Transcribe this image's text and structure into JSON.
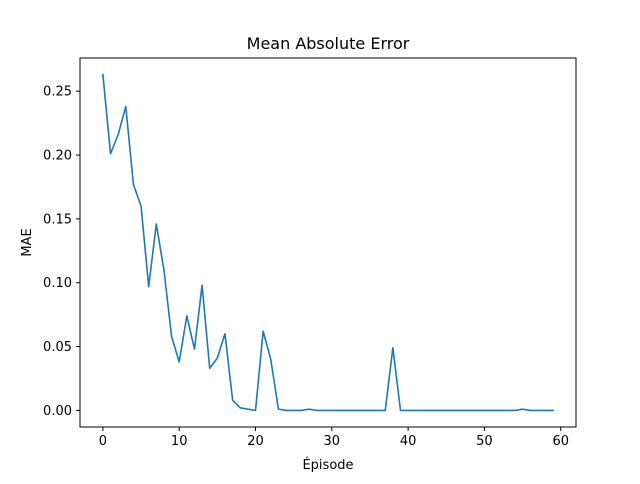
{
  "chart_data": {
    "type": "line",
    "title": "Mean Absolute Error",
    "xlabel": "Épisode",
    "ylabel": "MAE",
    "xlim": [
      -3,
      62
    ],
    "ylim": [
      -0.013,
      0.276
    ],
    "xticks": [
      0,
      10,
      20,
      30,
      40,
      50,
      60
    ],
    "xtick_labels": [
      "0",
      "10",
      "20",
      "30",
      "40",
      "50",
      "60"
    ],
    "yticks": [
      0.0,
      0.05,
      0.1,
      0.15,
      0.2,
      0.25
    ],
    "ytick_labels": [
      "0.00",
      "0.05",
      "0.10",
      "0.15",
      "0.20",
      "0.25"
    ],
    "grid": false,
    "series": [
      {
        "color": "#1f77b4",
        "x": [
          0,
          1,
          2,
          3,
          4,
          5,
          6,
          7,
          8,
          9,
          10,
          11,
          12,
          13,
          14,
          15,
          16,
          17,
          18,
          19,
          20,
          21,
          22,
          23,
          24,
          25,
          26,
          27,
          28,
          29,
          30,
          31,
          32,
          33,
          34,
          35,
          36,
          37,
          38,
          39,
          40,
          41,
          42,
          43,
          44,
          45,
          46,
          47,
          48,
          49,
          50,
          51,
          52,
          53,
          54,
          55,
          56,
          57,
          58,
          59
        ],
        "y": [
          0.263,
          0.201,
          0.216,
          0.238,
          0.177,
          0.16,
          0.097,
          0.146,
          0.11,
          0.058,
          0.038,
          0.074,
          0.048,
          0.098,
          0.033,
          0.041,
          0.06,
          0.008,
          0.002,
          0.001,
          0.0,
          0.062,
          0.04,
          0.001,
          0.0,
          0.0,
          0.0,
          0.001,
          0.0,
          0.0,
          0.0,
          0.0,
          0.0,
          0.0,
          0.0,
          0.0,
          0.0,
          0.0,
          0.049,
          0.0,
          0.0,
          0.0,
          0.0,
          0.0,
          0.0,
          0.0,
          0.0,
          0.0,
          0.0,
          0.0,
          0.0,
          0.0,
          0.0,
          0.0,
          0.0,
          0.001,
          0.0,
          0.0,
          0.0,
          0.0
        ]
      }
    ]
  }
}
